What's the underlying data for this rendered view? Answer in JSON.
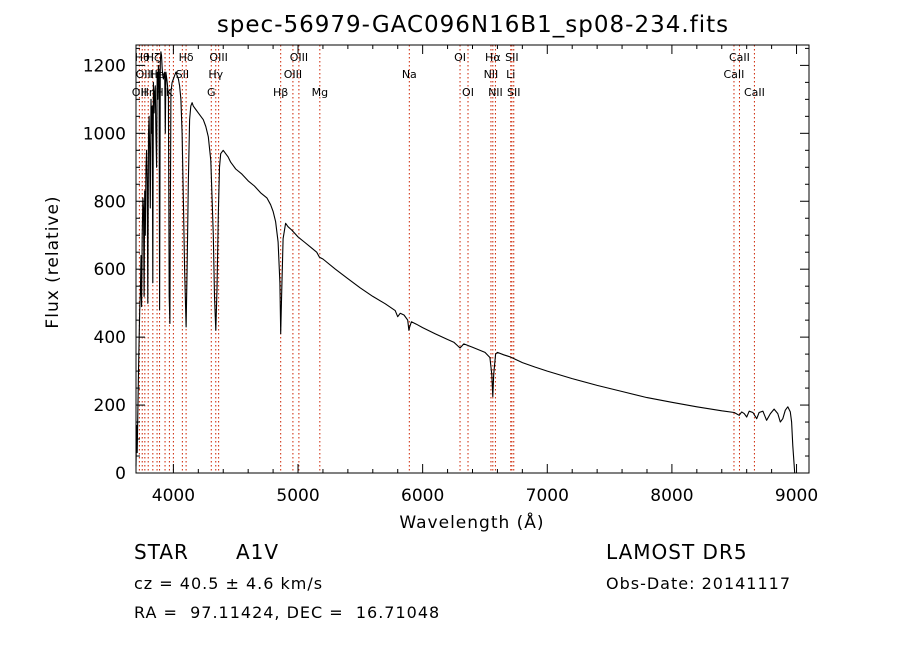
{
  "chart_data": {
    "type": "line",
    "title": "spec-56979-GAC096N16B1_sp08-234.fits",
    "xlabel": "Wavelength (Å)",
    "ylabel": "Flux (relative)",
    "xlim": [
      3700,
      9100
    ],
    "ylim": [
      0,
      1260
    ],
    "x_ticks": [
      4000,
      5000,
      6000,
      7000,
      8000,
      9000
    ],
    "y_ticks": [
      0,
      200,
      400,
      600,
      800,
      1000,
      1200
    ],
    "grid": false,
    "series": [
      {
        "points": [
          [
            3700,
            20
          ],
          [
            3705,
            140
          ],
          [
            3710,
            60
          ],
          [
            3720,
            300
          ],
          [
            3730,
            480
          ],
          [
            3735,
            530
          ],
          [
            3740,
            640
          ],
          [
            3745,
            490
          ],
          [
            3750,
            700
          ],
          [
            3755,
            810
          ],
          [
            3760,
            780
          ],
          [
            3765,
            520
          ],
          [
            3770,
            830
          ],
          [
            3775,
            700
          ],
          [
            3780,
            900
          ],
          [
            3785,
            950
          ],
          [
            3790,
            860
          ],
          [
            3795,
            500
          ],
          [
            3800,
            1000
          ],
          [
            3805,
            1050
          ],
          [
            3810,
            940
          ],
          [
            3815,
            780
          ],
          [
            3820,
            1100
          ],
          [
            3825,
            1000
          ],
          [
            3830,
            1080
          ],
          [
            3835,
            560
          ],
          [
            3840,
            1150
          ],
          [
            3845,
            1060
          ],
          [
            3850,
            1120
          ],
          [
            3855,
            1140
          ],
          [
            3860,
            1000
          ],
          [
            3865,
            900
          ],
          [
            3870,
            1180
          ],
          [
            3875,
            1100
          ],
          [
            3880,
            1200
          ],
          [
            3885,
            1180
          ],
          [
            3889,
            480
          ],
          [
            3895,
            1210
          ],
          [
            3900,
            1240
          ],
          [
            3905,
            1230
          ],
          [
            3910,
            1190
          ],
          [
            3915,
            1170
          ],
          [
            3920,
            1160
          ],
          [
            3930,
            1180
          ],
          [
            3935,
            1000
          ],
          [
            3940,
            1180
          ],
          [
            3950,
            1150
          ],
          [
            3960,
            1110
          ],
          [
            3966,
            520
          ],
          [
            3972,
            440
          ],
          [
            3980,
            1120
          ],
          [
            3990,
            1150
          ],
          [
            4000,
            1160
          ],
          [
            4010,
            1170
          ],
          [
            4020,
            1180
          ],
          [
            4030,
            1170
          ],
          [
            4040,
            1160
          ],
          [
            4050,
            1140
          ],
          [
            4060,
            1100
          ],
          [
            4070,
            1000
          ],
          [
            4080,
            800
          ],
          [
            4090,
            600
          ],
          [
            4102,
            430
          ],
          [
            4110,
            600
          ],
          [
            4120,
            850
          ],
          [
            4130,
            1040
          ],
          [
            4140,
            1080
          ],
          [
            4150,
            1090
          ],
          [
            4160,
            1080
          ],
          [
            4180,
            1070
          ],
          [
            4200,
            1060
          ],
          [
            4220,
            1050
          ],
          [
            4240,
            1040
          ],
          [
            4260,
            1020
          ],
          [
            4280,
            990
          ],
          [
            4300,
            920
          ],
          [
            4320,
            700
          ],
          [
            4330,
            520
          ],
          [
            4340,
            420
          ],
          [
            4350,
            540
          ],
          [
            4360,
            760
          ],
          [
            4370,
            900
          ],
          [
            4380,
            940
          ],
          [
            4400,
            950
          ],
          [
            4420,
            940
          ],
          [
            4440,
            930
          ],
          [
            4460,
            915
          ],
          [
            4480,
            905
          ],
          [
            4500,
            895
          ],
          [
            4550,
            880
          ],
          [
            4600,
            860
          ],
          [
            4650,
            845
          ],
          [
            4700,
            825
          ],
          [
            4750,
            810
          ],
          [
            4780,
            790
          ],
          [
            4800,
            770
          ],
          [
            4820,
            740
          ],
          [
            4840,
            680
          ],
          [
            4855,
            560
          ],
          [
            4861,
            410
          ],
          [
            4868,
            520
          ],
          [
            4880,
            690
          ],
          [
            4900,
            735
          ],
          [
            4920,
            725
          ],
          [
            4950,
            715
          ],
          [
            5000,
            695
          ],
          [
            5050,
            680
          ],
          [
            5100,
            665
          ],
          [
            5150,
            650
          ],
          [
            5172,
            635
          ],
          [
            5200,
            630
          ],
          [
            5300,
            600
          ],
          [
            5400,
            572
          ],
          [
            5500,
            545
          ],
          [
            5600,
            520
          ],
          [
            5700,
            498
          ],
          [
            5780,
            478
          ],
          [
            5800,
            460
          ],
          [
            5820,
            470
          ],
          [
            5850,
            465
          ],
          [
            5880,
            450
          ],
          [
            5890,
            420
          ],
          [
            5896,
            430
          ],
          [
            5910,
            445
          ],
          [
            5950,
            438
          ],
          [
            6000,
            428
          ],
          [
            6100,
            410
          ],
          [
            6200,
            393
          ],
          [
            6250,
            385
          ],
          [
            6280,
            375
          ],
          [
            6300,
            368
          ],
          [
            6330,
            380
          ],
          [
            6400,
            370
          ],
          [
            6500,
            355
          ],
          [
            6540,
            340
          ],
          [
            6555,
            290
          ],
          [
            6563,
            225
          ],
          [
            6570,
            290
          ],
          [
            6585,
            350
          ],
          [
            6600,
            355
          ],
          [
            6650,
            348
          ],
          [
            6700,
            342
          ],
          [
            6800,
            325
          ],
          [
            6900,
            312
          ],
          [
            7000,
            300
          ],
          [
            7200,
            278
          ],
          [
            7400,
            258
          ],
          [
            7600,
            240
          ],
          [
            7800,
            222
          ],
          [
            8000,
            208
          ],
          [
            8200,
            195
          ],
          [
            8400,
            183
          ],
          [
            8500,
            178
          ],
          [
            8540,
            170
          ],
          [
            8560,
            180
          ],
          [
            8580,
            175
          ],
          [
            8600,
            165
          ],
          [
            8620,
            182
          ],
          [
            8650,
            178
          ],
          [
            8680,
            160
          ],
          [
            8700,
            178
          ],
          [
            8730,
            182
          ],
          [
            8760,
            155
          ],
          [
            8790,
            175
          ],
          [
            8820,
            188
          ],
          [
            8850,
            175
          ],
          [
            8870,
            150
          ],
          [
            8890,
            160
          ],
          [
            8910,
            185
          ],
          [
            8930,
            195
          ],
          [
            8950,
            180
          ],
          [
            8960,
            150
          ],
          [
            8970,
            80
          ],
          [
            8980,
            30
          ],
          [
            8985,
            0
          ]
        ]
      }
    ],
    "lines": [
      {
        "x": 3727,
        "labels": [
          {
            "text": "OII",
            "row": 3
          }
        ]
      },
      {
        "x": 3750,
        "labels": [
          {
            "text": "Hθ",
            "row": 1
          }
        ]
      },
      {
        "x": 3771,
        "labels": [
          {
            "text": "OIII",
            "row": 2
          }
        ]
      },
      {
        "x": 3798,
        "labels": [
          {
            "text": "Hη",
            "row": 3
          }
        ]
      },
      {
        "x": 3835,
        "labels": [
          {
            "text": "Hζ",
            "row": 1
          }
        ]
      },
      {
        "x": 3869,
        "labels": [
          {
            "text": "He",
            "row": 2
          }
        ]
      },
      {
        "x": 3889,
        "labels": [
          {
            "text": "H",
            "row": 3
          }
        ]
      },
      {
        "x": 3933,
        "labels": []
      },
      {
        "x": 3968,
        "labels": [
          {
            "text": "K",
            "row": 3
          }
        ]
      },
      {
        "x": 4000,
        "labels": []
      },
      {
        "x": 4072,
        "labels": [
          {
            "text": "SII",
            "row": 2
          }
        ]
      },
      {
        "x": 4102,
        "labels": [
          {
            "text": "Hδ",
            "row": 1
          }
        ]
      },
      {
        "x": 4304,
        "labels": [
          {
            "text": "G",
            "row": 3
          }
        ]
      },
      {
        "x": 4340,
        "labels": [
          {
            "text": "Hγ",
            "row": 2
          }
        ]
      },
      {
        "x": 4363,
        "labels": [
          {
            "text": "OIII",
            "row": 1
          }
        ]
      },
      {
        "x": 4861,
        "labels": [
          {
            "text": "Hβ",
            "row": 3
          }
        ]
      },
      {
        "x": 4959,
        "labels": [
          {
            "text": "OIII",
            "row": 2
          }
        ]
      },
      {
        "x": 5007,
        "labels": [
          {
            "text": "OIII",
            "row": 1
          }
        ]
      },
      {
        "x": 5175,
        "labels": [
          {
            "text": "Mg",
            "row": 3
          }
        ]
      },
      {
        "x": 5893,
        "labels": [
          {
            "text": "Na",
            "row": 2
          }
        ]
      },
      {
        "x": 6300,
        "labels": [
          {
            "text": "OI",
            "row": 1
          }
        ]
      },
      {
        "x": 6364,
        "labels": [
          {
            "text": "OI",
            "row": 3
          }
        ]
      },
      {
        "x": 6548,
        "labels": [
          {
            "text": "NII",
            "row": 2
          }
        ]
      },
      {
        "x": 6563,
        "labels": [
          {
            "text": "Hα",
            "row": 1
          }
        ]
      },
      {
        "x": 6584,
        "labels": [
          {
            "text": "NII",
            "row": 3
          }
        ]
      },
      {
        "x": 6707,
        "labels": [
          {
            "text": "Li",
            "row": 2
          }
        ]
      },
      {
        "x": 6716,
        "labels": [
          {
            "text": "SII",
            "row": 1
          }
        ]
      },
      {
        "x": 6731,
        "labels": [
          {
            "text": "SII",
            "row": 3
          }
        ]
      },
      {
        "x": 8498,
        "labels": [
          {
            "text": "CaII",
            "row": 2
          }
        ]
      },
      {
        "x": 8542,
        "labels": [
          {
            "text": "CaII",
            "row": 1
          }
        ]
      },
      {
        "x": 8662,
        "labels": [
          {
            "text": "CaII",
            "row": 3
          }
        ]
      }
    ],
    "colors": {
      "line": "#000000",
      "marker": "#cc2200",
      "axis": "#000000"
    }
  },
  "info": {
    "class": "STAR",
    "subclass": "A1V",
    "catalog": "LAMOST DR5",
    "cz": "cz = 40.5 ± 4.6 km/s",
    "obs_date": "Obs-Date: 20141117",
    "coords": "RA =  97.11424, DEC =  16.71048"
  }
}
